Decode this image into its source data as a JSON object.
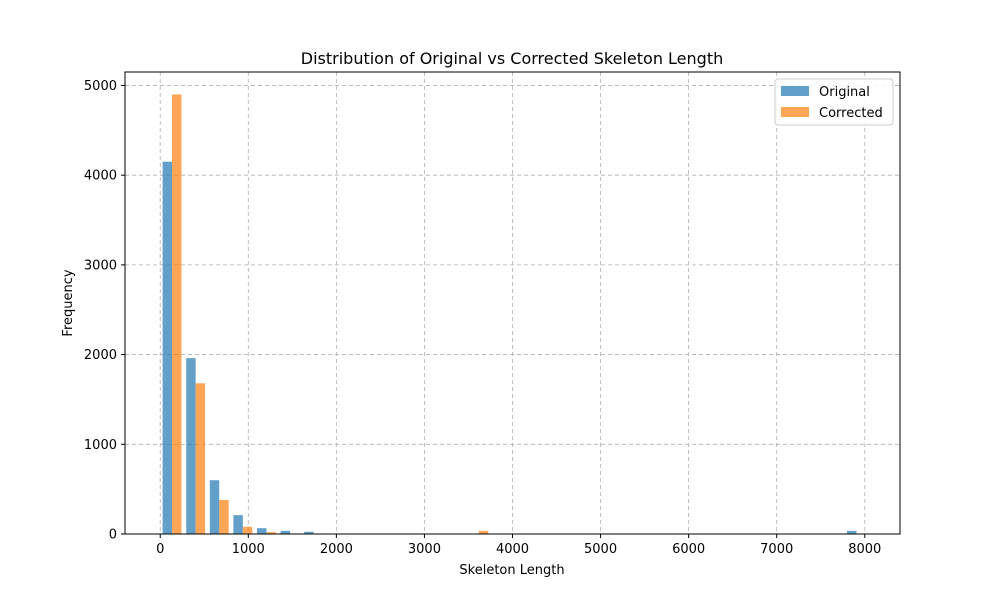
{
  "chart_data": {
    "type": "bar",
    "title": "Distribution of Original vs Corrected Skeleton Length",
    "xlabel": "Skeleton Length",
    "ylabel": "Frequency",
    "xlim": [
      -400,
      8400
    ],
    "ylim": [
      0,
      5150
    ],
    "xticks": [
      0,
      1000,
      2000,
      3000,
      4000,
      5000,
      6000,
      7000,
      8000
    ],
    "yticks": [
      0,
      1000,
      2000,
      3000,
      4000,
      5000
    ],
    "grid": true,
    "legend_position": "top-right",
    "bin_edges": [
      0,
      268,
      536,
      804,
      1072,
      1340,
      1608,
      1876,
      2144,
      2412,
      2680,
      2948,
      3216,
      3484,
      3752,
      4020,
      4288,
      4556,
      4824,
      5092,
      5360,
      5628,
      5896,
      6164,
      6432,
      6700,
      6968,
      7236,
      7504,
      7772,
      8040
    ],
    "series": [
      {
        "name": "Original",
        "color": "#1f77b4",
        "values": [
          4150,
          1960,
          600,
          210,
          65,
          35,
          25,
          0,
          0,
          0,
          0,
          0,
          0,
          0,
          0,
          0,
          0,
          0,
          0,
          0,
          0,
          0,
          0,
          0,
          0,
          0,
          0,
          0,
          0,
          35
        ]
      },
      {
        "name": "Corrected",
        "color": "#ff7f0e",
        "values": [
          4900,
          1680,
          380,
          80,
          20,
          0,
          0,
          0,
          0,
          0,
          0,
          0,
          0,
          35,
          0,
          0,
          0,
          0,
          0,
          0,
          0,
          0,
          0,
          0,
          0,
          0,
          0,
          0,
          0,
          0
        ]
      }
    ]
  }
}
